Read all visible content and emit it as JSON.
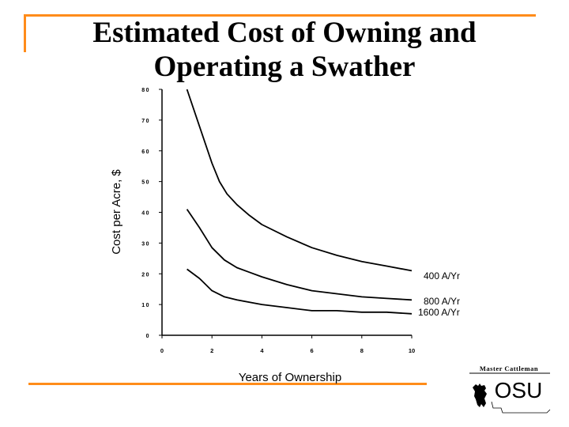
{
  "slide": {
    "title_line1": "Estimated Cost of Owning and",
    "title_line2": "Operating a Swather",
    "accent_color": "#ff8c1a"
  },
  "logo": {
    "text_top": "Master Cattleman",
    "text_main": "OSU"
  },
  "chart_data": {
    "type": "line",
    "title": "Estimated Cost of Owning and Operating a Swather",
    "xlabel": "Years of Ownership",
    "ylabel": "Cost per Acre, $",
    "xlim": [
      0,
      10
    ],
    "ylim": [
      0,
      80
    ],
    "x_ticks": [
      0,
      2,
      4,
      6,
      8,
      10
    ],
    "y_ticks": [
      0,
      10,
      20,
      30,
      40,
      50,
      60,
      70,
      80
    ],
    "grid": false,
    "series": [
      {
        "name": "400 A/Yr",
        "x": [
          1,
          1.5,
          2,
          2.3,
          2.6,
          3,
          3.5,
          4,
          5,
          6,
          7,
          8,
          9,
          10
        ],
        "y": [
          80,
          68,
          56,
          50,
          46,
          42.5,
          39,
          36,
          32,
          28.5,
          26,
          24,
          22.5,
          21
        ]
      },
      {
        "name": "800 A/Yr",
        "x": [
          1,
          1.5,
          2,
          2.5,
          3,
          3.5,
          4,
          5,
          6,
          7,
          8,
          9,
          10
        ],
        "y": [
          41,
          35,
          28.5,
          24.5,
          22,
          20.5,
          19,
          16.5,
          14.5,
          13.5,
          12.5,
          12,
          11.5
        ]
      },
      {
        "name": "1600 A/Yr",
        "x": [
          1,
          1.5,
          2,
          2.5,
          3,
          4,
          5,
          6,
          7,
          8,
          9,
          10
        ],
        "y": [
          21.5,
          18.5,
          14.5,
          12.5,
          11.5,
          10,
          9,
          8,
          8,
          7.5,
          7.5,
          7
        ]
      }
    ],
    "legend_placement": "right, at line ends"
  }
}
